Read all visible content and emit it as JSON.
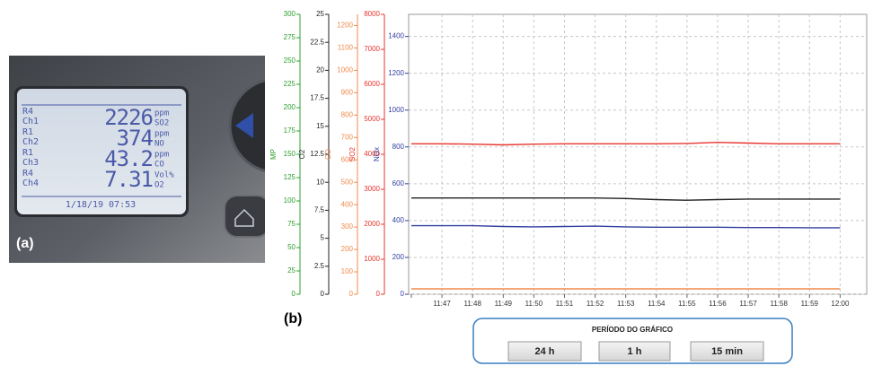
{
  "panels": [
    "(a)",
    "(b)"
  ],
  "lcd": {
    "rows": [
      {
        "channel_label": "R4",
        "channel": "Ch1",
        "value": 2226,
        "unit": "ppm",
        "gas": "SO2"
      },
      {
        "channel_label": "R1",
        "channel": "Ch2",
        "value": 374,
        "unit": "ppm",
        "gas": "NO"
      },
      {
        "channel_label": "R1",
        "channel": "Ch3",
        "value": 43.2,
        "unit": "ppm",
        "gas": "CO"
      },
      {
        "channel_label": "R4",
        "channel": "Ch4",
        "value": 7.31,
        "unit": "Vol%",
        "gas": "O2"
      }
    ],
    "timestamp": "1/18/19 07:53"
  },
  "chart_data": {
    "type": "line",
    "categories": [
      null,
      "11:47",
      "11:48",
      "11:49",
      "11:50",
      "11:51",
      "11:52",
      "11:53",
      "11:54",
      "11:55",
      "11:56",
      "11:57",
      "11:58",
      "11:59",
      "12:00"
    ],
    "axes": [
      {
        "label": "MP",
        "color": "#2ca02c",
        "ylim": [
          0,
          300
        ],
        "yticks": [
          0,
          25,
          50,
          75,
          100,
          125,
          150,
          175,
          200,
          225,
          250,
          275,
          300
        ]
      },
      {
        "label": "O2",
        "color": "#222222",
        "ylim": [
          0,
          25
        ],
        "yticks": [
          0,
          2.5,
          5,
          7.5,
          10,
          12.5,
          15,
          17.5,
          20,
          22.5,
          25
        ]
      },
      {
        "label": "CO",
        "color": "#f08a4b",
        "ylim": [
          0,
          1250
        ],
        "yticks": [
          0,
          100,
          200,
          300,
          400,
          500,
          600,
          700,
          800,
          900,
          1000,
          1100,
          1200
        ]
      },
      {
        "label": "SO2",
        "color": "#e8352e",
        "ylim": [
          0,
          8000
        ],
        "yticks": [
          0,
          1000,
          2000,
          3000,
          4000,
          5000,
          6000,
          7000,
          8000
        ]
      },
      {
        "label": "NOx",
        "color": "#3340a0",
        "ylim": [
          0,
          1520
        ],
        "yticks": [
          0,
          200,
          400,
          600,
          800,
          1000,
          1200,
          1400
        ],
        "grid": true
      }
    ],
    "series": [
      {
        "axis": 3,
        "color": "#e8352e",
        "values": [
          4300,
          4300,
          4290,
          4270,
          4290,
          4300,
          4300,
          4300,
          4300,
          4310,
          4340,
          4320,
          4300,
          4300,
          4300
        ]
      },
      {
        "axis": 1,
        "color": "#222222",
        "values": [
          8.6,
          8.6,
          8.6,
          8.6,
          8.6,
          8.6,
          8.6,
          8.55,
          8.45,
          8.4,
          8.45,
          8.5,
          8.5,
          8.5,
          8.5
        ]
      },
      {
        "axis": 4,
        "color": "#3340a0",
        "values": [
          372,
          372,
          372,
          368,
          366,
          368,
          370,
          366,
          364,
          364,
          364,
          362,
          362,
          361,
          361
        ]
      },
      {
        "axis": 2,
        "color": "#f08a4b",
        "values": [
          24,
          24,
          24,
          24,
          24,
          24,
          24,
          24,
          24,
          24,
          24,
          24,
          24,
          24,
          24
        ]
      }
    ],
    "grid": true
  },
  "period_selector": {
    "title": "PERÍODO DO GRÁFICO",
    "buttons": [
      "24 h",
      "1 h",
      "15 min"
    ]
  }
}
